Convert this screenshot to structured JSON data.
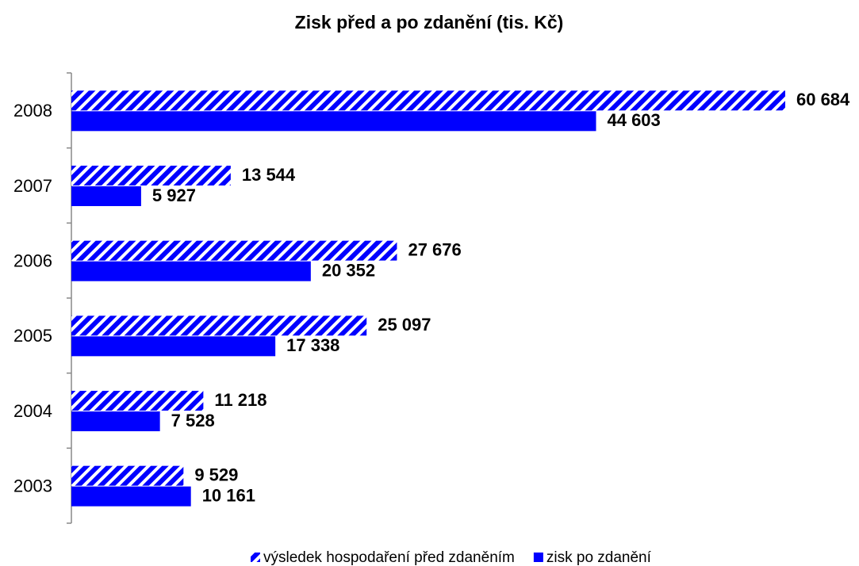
{
  "chart_data": {
    "type": "barh",
    "title": "Zisk před a po zdanění (tis. Kč)",
    "categories": [
      "2008",
      "2007",
      "2006",
      "2005",
      "2004",
      "2003"
    ],
    "series": [
      {
        "name": "výsledek hospodaření před zdaněním",
        "color": "#0000ff",
        "hatch": true,
        "values": [
          60684,
          13544,
          27676,
          25097,
          11218,
          9529
        ],
        "value_labels": [
          "60 684",
          "13 544",
          "27 676",
          "25 097",
          "11 218",
          "9 529"
        ]
      },
      {
        "name": "zisk po zdanění",
        "color": "#0000ff",
        "hatch": false,
        "values": [
          44603,
          5927,
          20352,
          17338,
          7528,
          10161
        ],
        "value_labels": [
          "44 603",
          "5 927",
          "20 352",
          "17 338",
          "7 528",
          "10 161"
        ]
      }
    ],
    "xlim": [
      0,
      65000
    ],
    "legend": "bottom"
  }
}
